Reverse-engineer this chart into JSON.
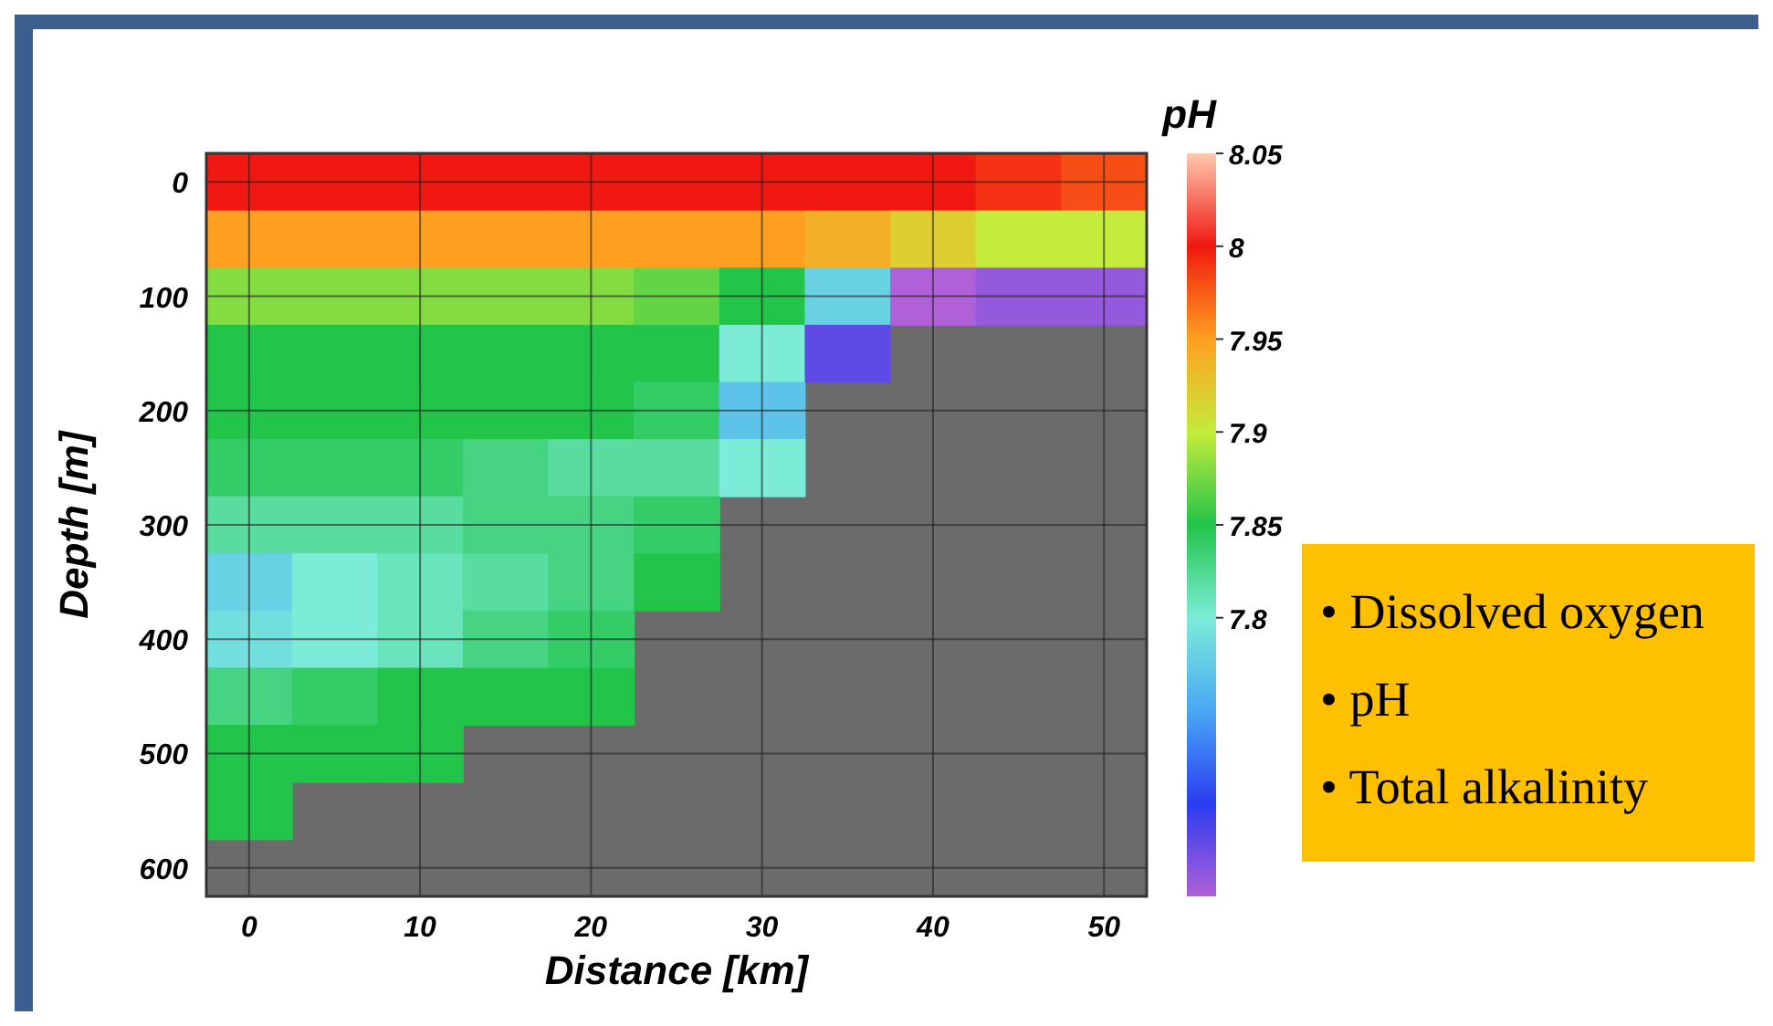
{
  "chart_data": {
    "type": "heatmap",
    "xlabel": "Distance [km]",
    "ylabel": "Depth [m]",
    "clabel": "pH",
    "grid": true,
    "clim": [
      7.65,
      8.05
    ],
    "cticks": [
      7.8,
      7.85,
      7.9,
      7.95,
      8,
      8.05
    ],
    "colors": [
      "#b060d8",
      "#2a3cf0",
      "#4aa8f5",
      "#7cecd8",
      "#22c44a",
      "#c4ec3a",
      "#ffa020",
      "#f01810",
      "#ffc8b0"
    ],
    "categories": [
      "0",
      null,
      "10",
      null,
      "20",
      null,
      "30",
      null,
      "40",
      null,
      "50"
    ],
    "y_categories": [
      "0",
      null,
      "100",
      null,
      "200",
      null,
      "300",
      null,
      "400",
      null,
      "500",
      null,
      "600"
    ],
    "cells": [
      [
        8,
        8,
        8,
        8,
        8,
        8,
        8,
        8,
        8,
        7.99,
        7.98
      ],
      [
        7.95,
        7.95,
        7.95,
        7.95,
        7.95,
        7.95,
        7.95,
        7.94,
        7.92,
        7.9,
        7.9
      ],
      [
        7.88,
        7.88,
        7.88,
        7.88,
        7.88,
        7.87,
        7.85,
        7.78,
        7.65,
        7.66,
        7.66
      ],
      [
        7.85,
        7.85,
        7.85,
        7.85,
        7.85,
        7.85,
        7.8,
        7.68,
        null,
        null,
        null
      ],
      [
        7.85,
        7.85,
        7.85,
        7.85,
        7.85,
        7.84,
        7.77,
        null,
        null,
        null,
        null
      ],
      [
        7.84,
        7.84,
        7.84,
        7.83,
        7.82,
        7.82,
        7.8,
        null,
        null,
        null,
        null
      ],
      [
        7.82,
        7.82,
        7.82,
        7.83,
        7.83,
        7.84,
        null,
        null,
        null,
        null,
        null
      ],
      [
        7.78,
        7.8,
        7.81,
        7.82,
        7.83,
        7.85,
        null,
        null,
        null,
        null,
        null
      ],
      [
        7.79,
        7.8,
        7.81,
        7.83,
        7.84,
        null,
        null,
        null,
        null,
        null,
        null
      ],
      [
        7.83,
        7.84,
        7.85,
        7.85,
        7.85,
        null,
        null,
        null,
        null,
        null,
        null
      ],
      [
        7.85,
        7.85,
        7.85,
        null,
        null,
        null,
        null,
        null,
        null,
        null,
        null
      ],
      [
        7.85,
        null,
        null,
        null,
        null,
        null,
        null,
        null,
        null,
        null,
        null
      ],
      [
        null,
        null,
        null,
        null,
        null,
        null,
        null,
        null,
        null,
        null,
        null
      ]
    ],
    "annotations": [
      "• Dissolved oxygen",
      "• pH",
      "• Total alkalinity"
    ]
  }
}
